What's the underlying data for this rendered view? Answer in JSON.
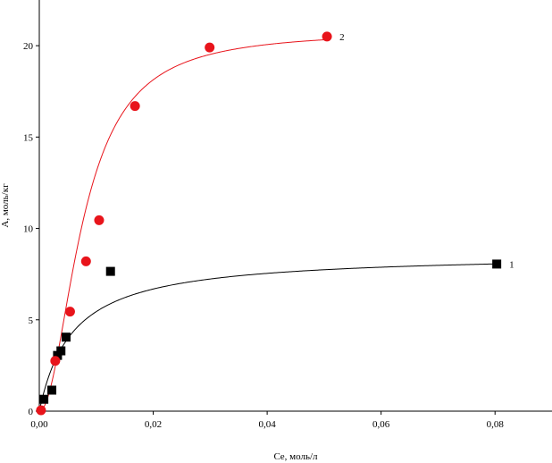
{
  "chart_data": {
    "type": "scatter",
    "title": "",
    "xlabel": "Ce, моль/л",
    "ylabel": "А, моль/кг",
    "xlim": [
      0,
      0.09
    ],
    "ylim": [
      0,
      22.5
    ],
    "x_ticks": [
      "0,00",
      "0,02",
      "0,04",
      "0,06",
      "0,08"
    ],
    "y_ticks": [
      "0",
      "5",
      "10",
      "15",
      "20"
    ],
    "grid": false,
    "series": [
      {
        "name": "1",
        "marker": "square",
        "color": "#000000",
        "points": [
          [
            0.0008,
            0.65
          ],
          [
            0.0022,
            1.15
          ],
          [
            0.0032,
            3.05
          ],
          [
            0.0038,
            3.3
          ],
          [
            0.0047,
            4.05
          ],
          [
            0.0125,
            7.65
          ],
          [
            0.0803,
            8.05
          ]
        ],
        "fit_curve": {
          "model": "langmuir",
          "qmax": 8.65,
          "K": 170,
          "color": "#000000"
        }
      },
      {
        "name": "2",
        "marker": "circle",
        "color": "#e8141b",
        "points": [
          [
            0.0003,
            0.05
          ],
          [
            0.0028,
            2.75
          ],
          [
            0.0054,
            5.45
          ],
          [
            0.0082,
            8.2
          ],
          [
            0.0105,
            10.45
          ],
          [
            0.0168,
            16.7
          ],
          [
            0.0299,
            19.9
          ],
          [
            0.0505,
            20.5
          ]
        ],
        "fit_curve": {
          "model": "sips",
          "qmax": 20.8,
          "K": 17000,
          "n": 2.0,
          "color": "#e8141b"
        }
      }
    ]
  }
}
